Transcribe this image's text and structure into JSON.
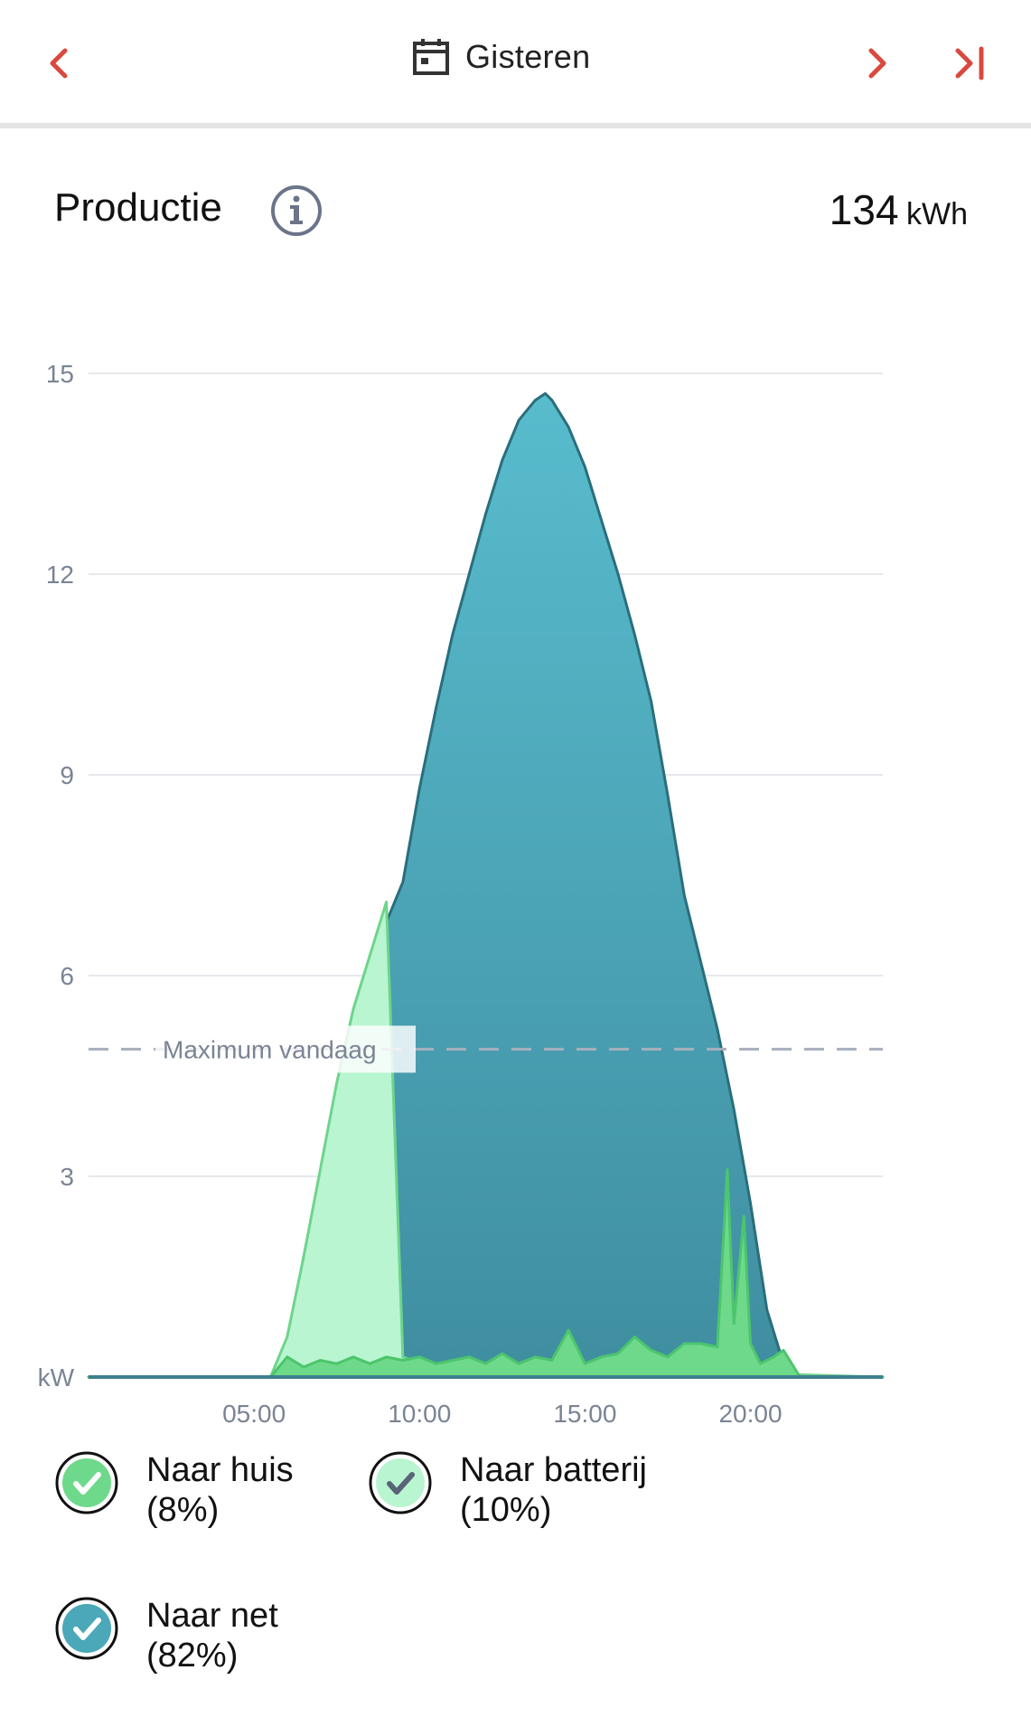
{
  "header": {
    "date_label": "Gisteren",
    "icons": {
      "prev": "chevron-left-icon",
      "next": "chevron-right-icon",
      "last": "skip-to-end-icon",
      "calendar": "calendar-icon"
    },
    "nav_color": "#d9493f"
  },
  "section": {
    "title": "Productie",
    "total_value": "134",
    "total_unit": "kWh",
    "info_icon": "info-icon"
  },
  "legend": [
    {
      "label": "Naar huis",
      "percent": "(8%)",
      "color": "#6ed98a"
    },
    {
      "label": "Naar batterij",
      "percent": "(10%)",
      "color": "#b8f5d0"
    },
    {
      "label": "Naar net",
      "percent": "(82%)",
      "color": "#4aa8b8"
    }
  ],
  "chart_data": {
    "type": "area",
    "ylabel": "kW",
    "yticks": [
      "15",
      "12",
      "9",
      "6",
      "3"
    ],
    "ylim": [
      0,
      15
    ],
    "xlim": [
      0,
      24
    ],
    "xticks": [
      {
        "label": "05:00",
        "x": 5
      },
      {
        "label": "10:00",
        "x": 10
      },
      {
        "label": "15:00",
        "x": 15
      },
      {
        "label": "20:00",
        "x": 20
      }
    ],
    "grid": true,
    "reference_line": {
      "label": "Maximum vandaag",
      "y": 4.9
    },
    "series": [
      {
        "name": "Naar net",
        "color": "#4aa8b8",
        "points": [
          [
            0,
            0
          ],
          [
            5.5,
            0
          ],
          [
            6,
            0.5
          ],
          [
            6.5,
            1.8
          ],
          [
            7,
            3.0
          ],
          [
            7.5,
            4.2
          ],
          [
            8,
            5.3
          ],
          [
            8.5,
            6.1
          ],
          [
            9,
            6.8
          ],
          [
            9.5,
            7.4
          ],
          [
            10,
            8.8
          ],
          [
            10.5,
            10.0
          ],
          [
            11,
            11.1
          ],
          [
            11.5,
            12.0
          ],
          [
            12,
            12.9
          ],
          [
            12.5,
            13.7
          ],
          [
            13,
            14.3
          ],
          [
            13.5,
            14.6
          ],
          [
            13.8,
            14.7
          ],
          [
            14,
            14.6
          ],
          [
            14.5,
            14.2
          ],
          [
            15,
            13.6
          ],
          [
            15.5,
            12.8
          ],
          [
            16,
            12.0
          ],
          [
            16.5,
            11.1
          ],
          [
            17,
            10.1
          ],
          [
            17.5,
            8.7
          ],
          [
            18,
            7.2
          ],
          [
            18.5,
            6.2
          ],
          [
            19,
            5.2
          ],
          [
            19.5,
            4.0
          ],
          [
            20,
            2.6
          ],
          [
            20.5,
            1.0
          ],
          [
            21,
            0.2
          ],
          [
            21.5,
            0
          ],
          [
            24,
            0
          ]
        ]
      },
      {
        "name": "Naar batterij",
        "color": "#b8f5d0",
        "points": [
          [
            0,
            0
          ],
          [
            5.5,
            0
          ],
          [
            6,
            0.6
          ],
          [
            6.5,
            1.8
          ],
          [
            7,
            3.1
          ],
          [
            7.5,
            4.4
          ],
          [
            8,
            5.5
          ],
          [
            8.5,
            6.3
          ],
          [
            9,
            7.1
          ],
          [
            9.5,
            0.3
          ],
          [
            10,
            0.2
          ],
          [
            24,
            0
          ]
        ]
      },
      {
        "name": "Naar huis",
        "color": "#6ed98a",
        "points": [
          [
            0,
            0
          ],
          [
            5.5,
            0
          ],
          [
            6,
            0.3
          ],
          [
            6.5,
            0.15
          ],
          [
            7,
            0.25
          ],
          [
            7.5,
            0.2
          ],
          [
            8,
            0.3
          ],
          [
            8.5,
            0.2
          ],
          [
            9,
            0.3
          ],
          [
            9.5,
            0.25
          ],
          [
            10,
            0.3
          ],
          [
            10.5,
            0.2
          ],
          [
            11,
            0.25
          ],
          [
            11.5,
            0.3
          ],
          [
            12,
            0.2
          ],
          [
            12.5,
            0.35
          ],
          [
            13,
            0.2
          ],
          [
            13.5,
            0.3
          ],
          [
            14,
            0.25
          ],
          [
            14.5,
            0.7
          ],
          [
            15,
            0.2
          ],
          [
            15.5,
            0.3
          ],
          [
            16,
            0.35
          ],
          [
            16.5,
            0.6
          ],
          [
            17,
            0.4
          ],
          [
            17.5,
            0.3
          ],
          [
            18,
            0.5
          ],
          [
            18.5,
            0.5
          ],
          [
            19,
            0.45
          ],
          [
            19.3,
            3.1
          ],
          [
            19.5,
            0.8
          ],
          [
            19.8,
            2.4
          ],
          [
            20,
            0.5
          ],
          [
            20.3,
            0.2
          ],
          [
            20.7,
            0.3
          ],
          [
            21,
            0.4
          ],
          [
            21.5,
            0
          ],
          [
            24,
            0
          ]
        ]
      }
    ]
  }
}
